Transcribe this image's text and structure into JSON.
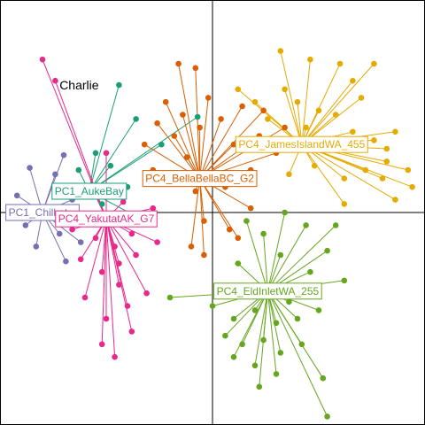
{
  "chart_data": {
    "type": "scatter",
    "title": "",
    "xlabel": "",
    "ylabel": "",
    "xlim": [
      -1.0,
      1.0
    ],
    "ylim": [
      -1.0,
      1.0
    ],
    "grid": false,
    "axes_lines_at": [
      0,
      0
    ],
    "annotation": "Charlie",
    "annotation_point": {
      "x": -0.72,
      "y": 0.58
    },
    "groups": [
      {
        "name": "PC1_Ch",
        "label": "PC1_Chilkat...",
        "color": "#7570b3",
        "centroid": {
          "x": -0.8,
          "y": 0.0
        },
        "points": [
          {
            "x": -0.86,
            "y": 0.21
          },
          {
            "x": -0.74,
            "y": 0.18
          },
          {
            "x": -0.92,
            "y": 0.08
          },
          {
            "x": -0.66,
            "y": 0.06
          },
          {
            "x": -0.88,
            "y": -0.06
          },
          {
            "x": -0.72,
            "y": -0.1
          },
          {
            "x": -0.83,
            "y": -0.16
          },
          {
            "x": -0.69,
            "y": -0.23
          },
          {
            "x": -0.62,
            "y": -0.14
          },
          {
            "x": -0.7,
            "y": 0.27
          }
        ]
      },
      {
        "name": "PC1_AukeBay",
        "label": "PC1_AukeBay",
        "color": "#1b9e77",
        "centroid": {
          "x": -0.58,
          "y": 0.1
        },
        "points": [
          {
            "x": -0.44,
            "y": 0.6
          },
          {
            "x": -0.36,
            "y": 0.44
          },
          {
            "x": -0.55,
            "y": 0.28
          },
          {
            "x": -0.48,
            "y": 0.22
          },
          {
            "x": -0.63,
            "y": 0.2
          },
          {
            "x": -0.4,
            "y": 0.12
          },
          {
            "x": -0.52,
            "y": 0.04
          },
          {
            "x": -0.3,
            "y": -0.05
          },
          {
            "x": -0.24,
            "y": 0.32
          },
          {
            "x": -0.07,
            "y": 0.45
          }
        ]
      },
      {
        "name": "PC4_YakutatAK_G7",
        "label": "PC4_YakutatAK_G7",
        "color": "#e7298a",
        "centroid": {
          "x": -0.5,
          "y": -0.03
        },
        "points": [
          {
            "x": -0.8,
            "y": 0.72
          },
          {
            "x": -0.74,
            "y": 0.62
          },
          {
            "x": -0.5,
            "y": 0.28
          },
          {
            "x": -0.56,
            "y": 0.1
          },
          {
            "x": -0.42,
            "y": 0.05
          },
          {
            "x": -0.48,
            "y": -0.05
          },
          {
            "x": -0.38,
            "y": -0.1
          },
          {
            "x": -0.55,
            "y": -0.12
          },
          {
            "x": -0.46,
            "y": -0.16
          },
          {
            "x": -0.36,
            "y": -0.2
          },
          {
            "x": -0.52,
            "y": -0.28
          },
          {
            "x": -0.44,
            "y": -0.34
          },
          {
            "x": -0.6,
            "y": -0.4
          },
          {
            "x": -0.4,
            "y": -0.44
          },
          {
            "x": -0.5,
            "y": -0.5
          },
          {
            "x": -0.31,
            "y": -0.38
          },
          {
            "x": -0.62,
            "y": -0.22
          },
          {
            "x": -0.34,
            "y": -0.04
          },
          {
            "x": -0.58,
            "y": -0.02
          },
          {
            "x": -0.44,
            "y": -0.24
          },
          {
            "x": -0.28,
            "y": 0.02
          },
          {
            "x": -0.66,
            "y": -0.08
          },
          {
            "x": -0.38,
            "y": -0.56
          },
          {
            "x": -0.52,
            "y": -0.62
          },
          {
            "x": -0.46,
            "y": -0.68
          },
          {
            "x": -0.26,
            "y": -0.14
          }
        ]
      },
      {
        "name": "PC4_BellaBellaBC_G2",
        "label": "PC4_BellaBellaBC_G2",
        "color": "#d95f02",
        "centroid": {
          "x": -0.06,
          "y": 0.16
        },
        "points": [
          {
            "x": -0.16,
            "y": 0.7
          },
          {
            "x": -0.08,
            "y": 0.68
          },
          {
            "x": -0.22,
            "y": 0.52
          },
          {
            "x": -0.26,
            "y": 0.42
          },
          {
            "x": -0.14,
            "y": 0.46
          },
          {
            "x": -0.02,
            "y": 0.54
          },
          {
            "x": -0.32,
            "y": 0.32
          },
          {
            "x": -0.18,
            "y": 0.36
          },
          {
            "x": -0.06,
            "y": 0.4
          },
          {
            "x": 0.04,
            "y": 0.44
          },
          {
            "x": 0.14,
            "y": 0.5
          },
          {
            "x": 0.24,
            "y": 0.48
          },
          {
            "x": -0.28,
            "y": 0.2
          },
          {
            "x": -0.12,
            "y": 0.26
          },
          {
            "x": 0.1,
            "y": 0.32
          },
          {
            "x": 0.22,
            "y": 0.36
          },
          {
            "x": 0.34,
            "y": 0.4
          },
          {
            "x": -0.08,
            "y": 0.1
          },
          {
            "x": 0.06,
            "y": 0.12
          },
          {
            "x": 0.18,
            "y": 0.2
          },
          {
            "x": 0.3,
            "y": 0.28
          },
          {
            "x": -0.04,
            "y": -0.04
          },
          {
            "x": 0.08,
            "y": -0.08
          },
          {
            "x": -0.1,
            "y": -0.16
          },
          {
            "x": -0.04,
            "y": -0.2
          },
          {
            "x": 0.12,
            "y": -0.12
          },
          {
            "x": 0.18,
            "y": 0.02
          }
        ]
      },
      {
        "name": "PC4_JamesIslandWA_455",
        "label": "PC4_JamesIslandWA_455",
        "color": "#e6ab02",
        "centroid": {
          "x": 0.42,
          "y": 0.32
        },
        "points": [
          {
            "x": 0.32,
            "y": 0.76
          },
          {
            "x": 0.46,
            "y": 0.72
          },
          {
            "x": 0.6,
            "y": 0.7
          },
          {
            "x": 0.76,
            "y": 0.7
          },
          {
            "x": 0.66,
            "y": 0.62
          },
          {
            "x": 0.12,
            "y": 0.58
          },
          {
            "x": 0.2,
            "y": 0.52
          },
          {
            "x": 0.34,
            "y": 0.58
          },
          {
            "x": 0.4,
            "y": 0.52
          },
          {
            "x": 0.5,
            "y": 0.48
          },
          {
            "x": 0.26,
            "y": 0.44
          },
          {
            "x": 0.58,
            "y": 0.46
          },
          {
            "x": 0.66,
            "y": 0.38
          },
          {
            "x": 0.76,
            "y": 0.34
          },
          {
            "x": 0.82,
            "y": 0.3
          },
          {
            "x": 0.72,
            "y": 0.2
          },
          {
            "x": 0.8,
            "y": 0.16
          },
          {
            "x": 0.94,
            "y": 0.12
          },
          {
            "x": 0.86,
            "y": 0.06
          },
          {
            "x": 0.62,
            "y": 0.16
          },
          {
            "x": 0.48,
            "y": 0.22
          },
          {
            "x": 0.36,
            "y": 0.18
          },
          {
            "x": 0.62,
            "y": 0.04
          },
          {
            "x": 0.82,
            "y": 0.24
          },
          {
            "x": 0.54,
            "y": 0.3
          },
          {
            "x": 0.86,
            "y": 0.38
          },
          {
            "x": 0.7,
            "y": 0.54
          },
          {
            "x": 0.3,
            "y": 0.3
          },
          {
            "x": 0.44,
            "y": 0.4
          },
          {
            "x": 0.92,
            "y": 0.2
          }
        ]
      },
      {
        "name": "PC4_EldInletWA_255",
        "label": "PC4_EldInletWA_255",
        "color": "#66a61e",
        "centroid": {
          "x": 0.26,
          "y": -0.37
        },
        "points": [
          {
            "x": 0.16,
            "y": -0.04
          },
          {
            "x": 0.34,
            "y": 0.0
          },
          {
            "x": 0.24,
            "y": -0.1
          },
          {
            "x": 0.44,
            "y": -0.06
          },
          {
            "x": 0.58,
            "y": -0.06
          },
          {
            "x": 0.54,
            "y": -0.18
          },
          {
            "x": 0.32,
            "y": -0.2
          },
          {
            "x": 0.12,
            "y": -0.24
          },
          {
            "x": 0.46,
            "y": -0.28
          },
          {
            "x": 0.62,
            "y": -0.32
          },
          {
            "x": -0.2,
            "y": -0.4
          },
          {
            "x": 0.0,
            "y": -0.44
          },
          {
            "x": 0.1,
            "y": -0.5
          },
          {
            "x": 0.2,
            "y": -0.46
          },
          {
            "x": 0.3,
            "y": -0.52
          },
          {
            "x": 0.4,
            "y": -0.5
          },
          {
            "x": 0.5,
            "y": -0.46
          },
          {
            "x": 0.06,
            "y": -0.58
          },
          {
            "x": 0.14,
            "y": -0.62
          },
          {
            "x": 0.24,
            "y": -0.6
          },
          {
            "x": 0.32,
            "y": -0.66
          },
          {
            "x": 0.42,
            "y": -0.62
          },
          {
            "x": 0.2,
            "y": -0.72
          },
          {
            "x": 0.3,
            "y": -0.76
          },
          {
            "x": 0.1,
            "y": -0.68
          },
          {
            "x": 0.52,
            "y": -0.78
          },
          {
            "x": 0.22,
            "y": -0.82
          },
          {
            "x": 0.54,
            "y": -0.96
          },
          {
            "x": 0.36,
            "y": -0.42
          },
          {
            "x": 0.02,
            "y": -0.36
          }
        ]
      }
    ]
  }
}
